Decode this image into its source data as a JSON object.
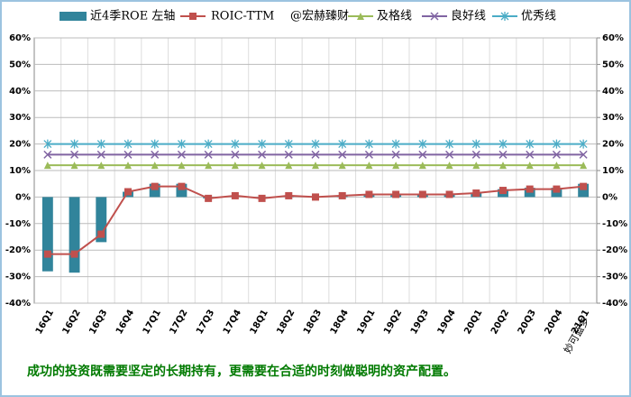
{
  "chart_data": {
    "type": "combo",
    "watermark": "@宏赫臻财",
    "annotation": "妙可蓝多",
    "footer": "成功的投资既需要坚定的长期持有，更需要在合适的时刻做聪明的资产配置。",
    "categories": [
      "16Q1",
      "16Q2",
      "16Q3",
      "16Q4",
      "17Q1",
      "17Q2",
      "17Q3",
      "17Q4",
      "18Q1",
      "18Q2",
      "18Q3",
      "18Q4",
      "19Q1",
      "19Q2",
      "19Q3",
      "19Q4",
      "20Q1",
      "20Q2",
      "20Q3",
      "20Q4",
      "21Q1"
    ],
    "series": [
      {
        "name": "近4季ROE 左轴",
        "type": "bar",
        "color": "#31849b",
        "axis": "y",
        "values": [
          -28,
          -28.5,
          -17,
          2,
          5,
          5,
          -0.5,
          0.5,
          -0.5,
          0.5,
          0.3,
          0.5,
          1,
          1,
          1,
          1,
          1.5,
          3,
          3.5,
          3.5,
          5
        ]
      },
      {
        "name": "ROIC-TTM",
        "type": "line",
        "marker": "square",
        "color": "#c0504d",
        "axis": "y2",
        "values": [
          -21.5,
          -21.5,
          -14,
          2,
          4,
          4,
          -0.5,
          0.5,
          -0.5,
          0.5,
          0,
          0.5,
          1,
          1,
          1,
          1,
          1.5,
          2.5,
          3,
          3,
          4
        ]
      },
      {
        "name": "及格线",
        "type": "line",
        "marker": "triangle",
        "color": "#9bbb59",
        "axis": "y2",
        "values": [
          12,
          12,
          12,
          12,
          12,
          12,
          12,
          12,
          12,
          12,
          12,
          12,
          12,
          12,
          12,
          12,
          12,
          12,
          12,
          12,
          12
        ]
      },
      {
        "name": "良好线",
        "type": "line",
        "marker": "cross",
        "color": "#8064a2",
        "axis": "y2",
        "values": [
          16,
          16,
          16,
          16,
          16,
          16,
          16,
          16,
          16,
          16,
          16,
          16,
          16,
          16,
          16,
          16,
          16,
          16,
          16,
          16,
          16
        ]
      },
      {
        "name": "优秀线",
        "type": "line",
        "marker": "star",
        "color": "#4bacc6",
        "axis": "y2",
        "values": [
          20,
          20,
          20,
          20,
          20,
          20,
          20,
          20,
          20,
          20,
          20,
          20,
          20,
          20,
          20,
          20,
          20,
          20,
          20,
          20,
          20
        ]
      }
    ],
    "ylim": [
      -40,
      60
    ],
    "yticks": [
      {
        "value": -40,
        "label": "-40%"
      },
      {
        "value": -30,
        "label": "-30%"
      },
      {
        "value": -20,
        "label": "-20%"
      },
      {
        "value": -10,
        "label": "-10%"
      },
      {
        "value": 0,
        "label": "0%"
      },
      {
        "value": 10,
        "label": "10%"
      },
      {
        "value": 20,
        "label": "20%"
      },
      {
        "value": 30,
        "label": "30%"
      },
      {
        "value": 40,
        "label": "40%"
      },
      {
        "value": 50,
        "label": "50%"
      },
      {
        "value": 60,
        "label": "60%"
      }
    ],
    "y2lim": [
      -40,
      60
    ],
    "y2ticks": [
      {
        "value": -40,
        "label": "-40%"
      },
      {
        "value": -30,
        "label": "-30%"
      },
      {
        "value": -20,
        "label": "-20%"
      },
      {
        "value": -10,
        "label": "-10%"
      },
      {
        "value": 0,
        "label": "0%"
      },
      {
        "value": 10,
        "label": "10%"
      },
      {
        "value": 20,
        "label": "20%"
      },
      {
        "value": 30,
        "label": "30%"
      },
      {
        "value": 40,
        "label": "40%"
      },
      {
        "value": 50,
        "label": "50%"
      },
      {
        "value": 60,
        "label": "60%"
      }
    ],
    "grid": true
  }
}
